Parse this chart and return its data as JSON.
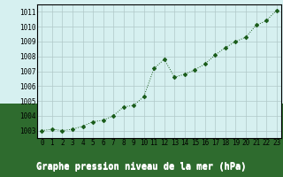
{
  "x": [
    0,
    1,
    2,
    3,
    4,
    5,
    6,
    7,
    8,
    9,
    10,
    11,
    12,
    13,
    14,
    15,
    16,
    17,
    18,
    19,
    20,
    21,
    22,
    23
  ],
  "y": [
    1003.0,
    1003.1,
    1003.0,
    1003.1,
    1003.3,
    1003.6,
    1003.7,
    1004.0,
    1004.6,
    1004.7,
    1005.3,
    1007.2,
    1007.8,
    1006.6,
    1006.8,
    1007.1,
    1007.5,
    1008.1,
    1008.6,
    1009.0,
    1009.3,
    1010.1,
    1010.4,
    1011.1
  ],
  "ylim": [
    1002.5,
    1011.5
  ],
  "yticks": [
    1003,
    1004,
    1005,
    1006,
    1007,
    1008,
    1009,
    1010,
    1011
  ],
  "xticks": [
    0,
    1,
    2,
    3,
    4,
    5,
    6,
    7,
    8,
    9,
    10,
    11,
    12,
    13,
    14,
    15,
    16,
    17,
    18,
    19,
    20,
    21,
    22,
    23
  ],
  "line_color": "#1a5c1a",
  "marker": "D",
  "bg_color": "#d6f0f0",
  "grid_color": "#b0c8c8",
  "xlabel": "Graphe pression niveau de la mer (hPa)",
  "xlabel_bg": "#2e6b2e",
  "xlabel_color": "#ffffff",
  "tick_fontsize": 5.5,
  "label_fontsize": 7.5
}
